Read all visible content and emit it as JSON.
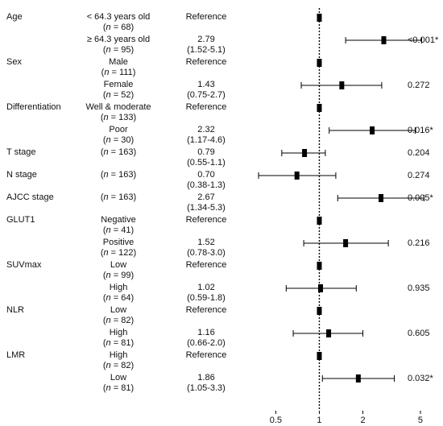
{
  "chart_data": {
    "type": "forest",
    "x_scale": "log",
    "xlim": [
      0.33,
      6.3
    ],
    "x_ticks": [
      0.5,
      1,
      2,
      5
    ],
    "x_tick_labels": [
      "0.5",
      "1",
      "2",
      "5"
    ],
    "reference_line": 1,
    "rows": [
      {
        "variable": "Age",
        "category": "< 64.3 years old",
        "n_prefix": "(",
        "n_label": "n",
        "n_suffix": " = 68)",
        "hr_text": "Reference",
        "ci_text": "",
        "p": "",
        "hr": 1,
        "ci": null
      },
      {
        "variable": "",
        "category": "≥ 64.3 years old",
        "n_prefix": "(",
        "n_label": "n",
        "n_suffix": " = 95)",
        "hr_text": "2.79",
        "ci_text": "(1.52-5.1)",
        "p": "<0.001*",
        "hr": 2.79,
        "ci": [
          1.52,
          5.1
        ]
      },
      {
        "variable": "Sex",
        "category": "Male",
        "n_prefix": "(",
        "n_label": "n",
        "n_suffix": " = 111)",
        "hr_text": "Reference",
        "ci_text": "",
        "p": "",
        "hr": 1,
        "ci": null
      },
      {
        "variable": "",
        "category": "Female",
        "n_prefix": "(",
        "n_label": "n",
        "n_suffix": " = 52)",
        "hr_text": "1.43",
        "ci_text": "(0.75-2.7)",
        "p": "0.272",
        "hr": 1.43,
        "ci": [
          0.75,
          2.7
        ]
      },
      {
        "variable": "Differentiation",
        "category": "Well & moderate",
        "n_prefix": "(",
        "n_label": "n",
        "n_suffix": " = 133)",
        "hr_text": "Reference",
        "ci_text": "",
        "p": "",
        "hr": 1,
        "ci": null
      },
      {
        "variable": "",
        "category": "Poor",
        "n_prefix": "(",
        "n_label": "n",
        "n_suffix": " = 30)",
        "hr_text": "2.32",
        "ci_text": "(1.17-4.6)",
        "p": "0.016*",
        "hr": 2.32,
        "ci": [
          1.17,
          4.6
        ]
      },
      {
        "variable": "T stage",
        "category": "",
        "n_prefix": "(",
        "n_label": "n",
        "n_suffix": " = 163)",
        "hr_text": "0.79",
        "ci_text": "(0.55-1.1)",
        "p": "0.204",
        "hr": 0.79,
        "ci": [
          0.55,
          1.1
        ]
      },
      {
        "variable": "N stage",
        "category": "",
        "n_prefix": "(",
        "n_label": "n",
        "n_suffix": " = 163)",
        "hr_text": "0.70",
        "ci_text": "(0.38-1.3)",
        "p": "0.274",
        "hr": 0.7,
        "ci": [
          0.38,
          1.3
        ]
      },
      {
        "variable": "AJCC stage",
        "category": "",
        "n_prefix": "(",
        "n_label": "n",
        "n_suffix": " = 163)",
        "hr_text": "2.67",
        "ci_text": "(1.34-5.3)",
        "p": "0.005*",
        "hr": 2.67,
        "ci": [
          1.34,
          5.3
        ]
      },
      {
        "variable": "GLUT1",
        "category": "Negative",
        "n_prefix": "(",
        "n_label": "n",
        "n_suffix": " = 41)",
        "hr_text": "Reference",
        "ci_text": "",
        "p": "",
        "hr": 1,
        "ci": null
      },
      {
        "variable": "",
        "category": "Positive",
        "n_prefix": "(",
        "n_label": "n",
        "n_suffix": " = 122)",
        "hr_text": "1.52",
        "ci_text": "(0.78-3.0)",
        "p": "0.216",
        "hr": 1.52,
        "ci": [
          0.78,
          3.0
        ]
      },
      {
        "variable": "SUVmax",
        "category": "Low",
        "n_prefix": "(",
        "n_label": "n",
        "n_suffix": " = 99)",
        "hr_text": "Reference",
        "ci_text": "",
        "p": "",
        "hr": 1,
        "ci": null
      },
      {
        "variable": "",
        "category": "High",
        "n_prefix": "(",
        "n_label": "n",
        "n_suffix": " = 64)",
        "hr_text": "1.02",
        "ci_text": "(0.59-1.8)",
        "p": "0.935",
        "hr": 1.02,
        "ci": [
          0.59,
          1.8
        ]
      },
      {
        "variable": "NLR",
        "category": "Low",
        "n_prefix": "(",
        "n_label": "n",
        "n_suffix": " = 82)",
        "hr_text": "Reference",
        "ci_text": "",
        "p": "",
        "hr": 1,
        "ci": null
      },
      {
        "variable": "",
        "category": "High",
        "n_prefix": "(",
        "n_label": "n",
        "n_suffix": " = 81)",
        "hr_text": "1.16",
        "ci_text": "(0.66-2.0)",
        "p": "0.605",
        "hr": 1.16,
        "ci": [
          0.66,
          2.0
        ]
      },
      {
        "variable": "LMR",
        "category": "High",
        "n_prefix": "(",
        "n_label": "n",
        "n_suffix": " = 82)",
        "hr_text": "Reference",
        "ci_text": "",
        "p": "",
        "hr": 1,
        "ci": null
      },
      {
        "variable": "",
        "category": "Low",
        "n_prefix": "(",
        "n_label": "n",
        "n_suffix": " = 81)",
        "hr_text": "1.86",
        "ci_text": "(1.05-3.3)",
        "p": "0.032*",
        "hr": 1.86,
        "ci": [
          1.05,
          3.3
        ]
      }
    ]
  }
}
